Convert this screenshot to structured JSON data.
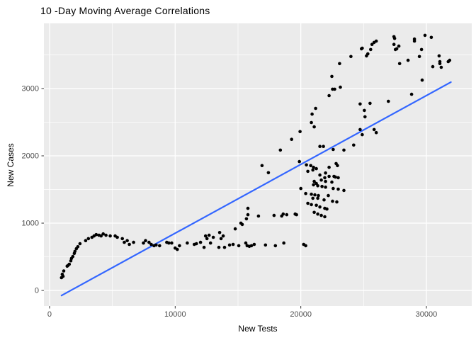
{
  "chart_data": {
    "type": "scatter",
    "title": "10 -Day Moving Average Correlations",
    "xlabel": "New Tests",
    "ylabel": "New Cases",
    "x_ticks": [
      0,
      10000,
      20000,
      30000
    ],
    "y_ticks": [
      0,
      1000,
      2000,
      3000
    ],
    "x_minor_ticks": [
      5000,
      15000,
      25000
    ],
    "y_minor_ticks": [
      500,
      1500,
      2500,
      3500
    ],
    "xlim": [
      -451,
      33610
    ],
    "ylim": [
      -231,
      3968
    ],
    "grid": true,
    "legend": "none",
    "colors": {
      "panel_background": "#EBEBEB",
      "gridline": "#FFFFFF",
      "point": "#000000",
      "regression_line": "#3366FF",
      "tick_label": "#4D4D4D",
      "tick_mark": "#333333",
      "title_text": "#000000"
    },
    "regression_line": {
      "x1": 950,
      "y1": -75,
      "x2": 31950,
      "y2": 3095
    },
    "points": [
      [
        950,
        190
      ],
      [
        1010,
        240
      ],
      [
        1070,
        210
      ],
      [
        1130,
        290
      ],
      [
        1400,
        360
      ],
      [
        1460,
        370
      ],
      [
        1570,
        390
      ],
      [
        1690,
        440
      ],
      [
        1740,
        475
      ],
      [
        1850,
        505
      ],
      [
        1970,
        550
      ],
      [
        2020,
        580
      ],
      [
        2130,
        620
      ],
      [
        2250,
        650
      ],
      [
        2420,
        695
      ],
      [
        2870,
        740
      ],
      [
        3090,
        770
      ],
      [
        3370,
        790
      ],
      [
        3540,
        810
      ],
      [
        3710,
        830
      ],
      [
        3930,
        820
      ],
      [
        4100,
        810
      ],
      [
        4270,
        840
      ],
      [
        4490,
        820
      ],
      [
        4830,
        810
      ],
      [
        5220,
        810
      ],
      [
        5390,
        790
      ],
      [
        5790,
        770
      ],
      [
        5950,
        715
      ],
      [
        6180,
        740
      ],
      [
        6350,
        685
      ],
      [
        6690,
        715
      ],
      [
        7470,
        705
      ],
      [
        7640,
        740
      ],
      [
        7920,
        715
      ],
      [
        8090,
        685
      ],
      [
        8310,
        665
      ],
      [
        8480,
        675
      ],
      [
        8760,
        665
      ],
      [
        9330,
        715
      ],
      [
        9490,
        705
      ],
      [
        9720,
        705
      ],
      [
        10000,
        630
      ],
      [
        10170,
        610
      ],
      [
        10340,
        665
      ],
      [
        10960,
        705
      ],
      [
        11520,
        685
      ],
      [
        11690,
        695
      ],
      [
        12020,
        715
      ],
      [
        12300,
        640
      ],
      [
        12420,
        810
      ],
      [
        12530,
        770
      ],
      [
        12700,
        820
      ],
      [
        12810,
        705
      ],
      [
        13030,
        790
      ],
      [
        13480,
        640
      ],
      [
        13540,
        860
      ],
      [
        13650,
        770
      ],
      [
        13820,
        810
      ],
      [
        13930,
        640
      ],
      [
        14330,
        675
      ],
      [
        14610,
        685
      ],
      [
        15060,
        665
      ],
      [
        15620,
        705
      ],
      [
        15730,
        665
      ],
      [
        15900,
        655
      ],
      [
        16070,
        665
      ],
      [
        16290,
        685
      ],
      [
        17190,
        675
      ],
      [
        17980,
        665
      ],
      [
        18650,
        705
      ],
      [
        20230,
        685
      ],
      [
        20390,
        665
      ],
      [
        14780,
        915
      ],
      [
        15230,
        1000
      ],
      [
        15340,
        980
      ],
      [
        15670,
        1065
      ],
      [
        15790,
        1125
      ],
      [
        16630,
        1105
      ],
      [
        17870,
        1115
      ],
      [
        18480,
        1105
      ],
      [
        18600,
        1135
      ],
      [
        18880,
        1125
      ],
      [
        19550,
        1135
      ],
      [
        19660,
        1125
      ],
      [
        15790,
        1220
      ],
      [
        16910,
        1855
      ],
      [
        17420,
        1750
      ],
      [
        18370,
        2085
      ],
      [
        19270,
        2245
      ],
      [
        19940,
        2360
      ],
      [
        21070,
        2430
      ],
      [
        20840,
        2495
      ],
      [
        20900,
        2620
      ],
      [
        21180,
        2705
      ],
      [
        21520,
        2140
      ],
      [
        21800,
        2140
      ],
      [
        19890,
        1915
      ],
      [
        20450,
        1865
      ],
      [
        20790,
        1855
      ],
      [
        21010,
        1830
      ],
      [
        21240,
        1810
      ],
      [
        20960,
        1790
      ],
      [
        20560,
        1770
      ],
      [
        21520,
        1715
      ],
      [
        21970,
        1745
      ],
      [
        21910,
        1675
      ],
      [
        21630,
        1640
      ],
      [
        21970,
        1620
      ],
      [
        21070,
        1620
      ],
      [
        21240,
        1590
      ],
      [
        21010,
        1570
      ],
      [
        21350,
        1555
      ],
      [
        21690,
        1545
      ],
      [
        21970,
        1535
      ],
      [
        20000,
        1515
      ],
      [
        20390,
        1440
      ],
      [
        20840,
        1430
      ],
      [
        21120,
        1420
      ],
      [
        21400,
        1410
      ],
      [
        20960,
        1370
      ],
      [
        21350,
        1370
      ],
      [
        21850,
        1345
      ],
      [
        20560,
        1295
      ],
      [
        20840,
        1275
      ],
      [
        21240,
        1265
      ],
      [
        21520,
        1240
      ],
      [
        21910,
        1220
      ],
      [
        22080,
        1210
      ],
      [
        21070,
        1160
      ],
      [
        21350,
        1135
      ],
      [
        21630,
        1115
      ],
      [
        21910,
        1095
      ],
      [
        22250,
        1830
      ],
      [
        22810,
        1885
      ],
      [
        22920,
        1855
      ],
      [
        22250,
        1695
      ],
      [
        22640,
        1695
      ],
      [
        22750,
        1685
      ],
      [
        22980,
        1675
      ],
      [
        22470,
        1610
      ],
      [
        22580,
        1515
      ],
      [
        22980,
        1505
      ],
      [
        23430,
        1485
      ],
      [
        22190,
        1410
      ],
      [
        22530,
        1325
      ],
      [
        22870,
        1315
      ],
      [
        24720,
        2390
      ],
      [
        24890,
        2315
      ],
      [
        25840,
        2390
      ],
      [
        26010,
        2345
      ],
      [
        24210,
        2160
      ],
      [
        23430,
        2085
      ],
      [
        22580,
        2095
      ],
      [
        23090,
        3370
      ],
      [
        22470,
        3180
      ],
      [
        22530,
        2990
      ],
      [
        22250,
        2895
      ],
      [
        22700,
        2990
      ],
      [
        23150,
        3020
      ],
      [
        23990,
        3475
      ],
      [
        24830,
        3590
      ],
      [
        24890,
        3600
      ],
      [
        25230,
        3485
      ],
      [
        25340,
        3515
      ],
      [
        25560,
        3580
      ],
      [
        25670,
        3655
      ],
      [
        25840,
        3685
      ],
      [
        26010,
        3705
      ],
      [
        27420,
        3770
      ],
      [
        27470,
        3745
      ],
      [
        27420,
        3655
      ],
      [
        27530,
        3580
      ],
      [
        27640,
        3590
      ],
      [
        27810,
        3630
      ],
      [
        27870,
        3370
      ],
      [
        28540,
        3420
      ],
      [
        29050,
        3735
      ],
      [
        29050,
        3705
      ],
      [
        29610,
        3580
      ],
      [
        29440,
        3475
      ],
      [
        29890,
        3790
      ],
      [
        30390,
        3760
      ],
      [
        30510,
        3325
      ],
      [
        31010,
        3485
      ],
      [
        31070,
        3400
      ],
      [
        31070,
        3370
      ],
      [
        31180,
        3315
      ],
      [
        31740,
        3400
      ],
      [
        31850,
        3420
      ],
      [
        29660,
        3125
      ],
      [
        28820,
        2915
      ],
      [
        24720,
        2770
      ],
      [
        25510,
        2780
      ],
      [
        25060,
        2675
      ],
      [
        25110,
        2580
      ],
      [
        26970,
        2810
      ]
    ]
  }
}
